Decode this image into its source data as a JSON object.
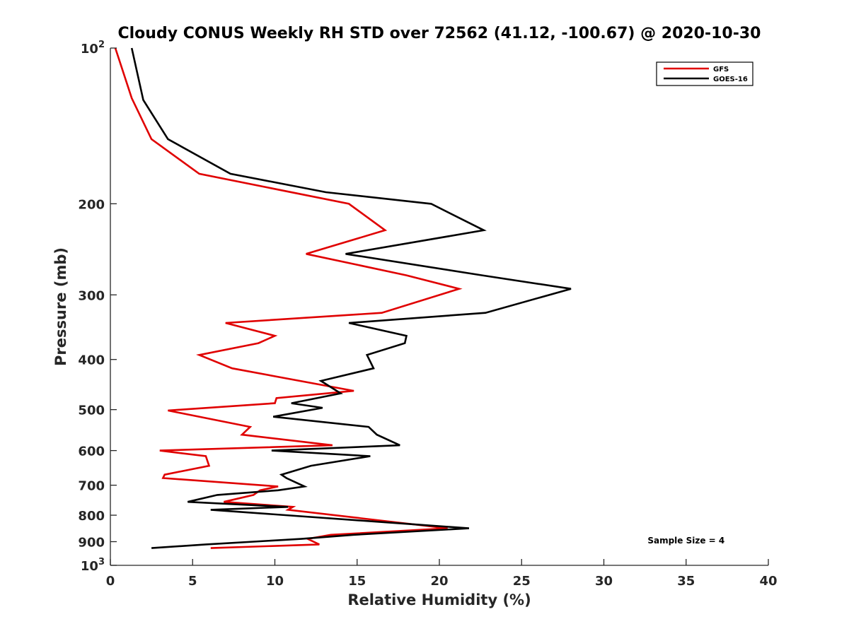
{
  "chart_data": {
    "type": "line",
    "title": "Cloudy CONUS Weekly RH STD over 72562 (41.12, -100.67) @ 2020-10-30",
    "xlabel": "Relative Humidity (%)",
    "ylabel": "Pressure (mb)",
    "xlim": [
      0,
      40
    ],
    "ylim": [
      100,
      1000
    ],
    "y_scale": "log",
    "y_reversed": true,
    "x_ticks": [
      "0",
      "5",
      "10",
      "15",
      "20",
      "25",
      "30",
      "35",
      "40"
    ],
    "y_ticks": [
      {
        "value": 100,
        "base": "10",
        "exp": "2"
      },
      {
        "value": 200,
        "label": "200"
      },
      {
        "value": 300,
        "label": "300"
      },
      {
        "value": 400,
        "label": "400"
      },
      {
        "value": 500,
        "label": "500"
      },
      {
        "value": 600,
        "label": "600"
      },
      {
        "value": 700,
        "label": "700"
      },
      {
        "value": 800,
        "label": "800"
      },
      {
        "value": 900,
        "label": "900"
      },
      {
        "value": 1000,
        "base": "10",
        "exp": "3"
      }
    ],
    "grid": false,
    "legend_position": "top-right",
    "series": [
      {
        "name": "GFS",
        "color": "#e00000",
        "points": [
          [
            0.3,
            100
          ],
          [
            1.3,
            125
          ],
          [
            2.5,
            150
          ],
          [
            5.4,
            175
          ],
          [
            14.5,
            200
          ],
          [
            16.7,
            225
          ],
          [
            11.9,
            250
          ],
          [
            18.0,
            275
          ],
          [
            21.2,
            292
          ],
          [
            16.5,
            325
          ],
          [
            7.0,
            340
          ],
          [
            10.0,
            360
          ],
          [
            9.0,
            372
          ],
          [
            5.4,
            392
          ],
          [
            7.4,
            416
          ],
          [
            14.8,
            460
          ],
          [
            10.1,
            475
          ],
          [
            10.0,
            486
          ],
          [
            3.5,
            502
          ],
          [
            8.5,
            540
          ],
          [
            8.0,
            559
          ],
          [
            13.5,
            586
          ],
          [
            3.0,
            600
          ],
          [
            5.8,
            615
          ],
          [
            6.0,
            642
          ],
          [
            3.3,
            668
          ],
          [
            3.2,
            678
          ],
          [
            10.2,
            704
          ],
          [
            9.1,
            716
          ],
          [
            8.7,
            731
          ],
          [
            6.9,
            754
          ],
          [
            11.1,
            771
          ],
          [
            10.8,
            781
          ],
          [
            20.5,
            848
          ],
          [
            13.4,
            873
          ],
          [
            12.0,
            889
          ],
          [
            12.7,
            911
          ],
          [
            6.1,
            926
          ]
        ]
      },
      {
        "name": "GOES-16",
        "color": "#000000",
        "points": [
          [
            1.3,
            100
          ],
          [
            2.0,
            126
          ],
          [
            3.5,
            150
          ],
          [
            7.3,
            175
          ],
          [
            13.1,
            190
          ],
          [
            19.5,
            200
          ],
          [
            22.7,
            225
          ],
          [
            14.3,
            250
          ],
          [
            22.6,
            275
          ],
          [
            28.0,
            292
          ],
          [
            22.8,
            325
          ],
          [
            14.5,
            340
          ],
          [
            18.0,
            360
          ],
          [
            17.9,
            372
          ],
          [
            15.6,
            392
          ],
          [
            16.0,
            416
          ],
          [
            12.8,
            440
          ],
          [
            14.0,
            465
          ],
          [
            11.0,
            486
          ],
          [
            12.9,
            496
          ],
          [
            9.9,
            516
          ],
          [
            15.7,
            540
          ],
          [
            16.2,
            559
          ],
          [
            17.6,
            586
          ],
          [
            9.8,
            600
          ],
          [
            15.8,
            615
          ],
          [
            12.2,
            642
          ],
          [
            10.4,
            668
          ],
          [
            10.7,
            678
          ],
          [
            11.8,
            704
          ],
          [
            10.2,
            716
          ],
          [
            6.5,
            731
          ],
          [
            4.7,
            754
          ],
          [
            10.8,
            771
          ],
          [
            6.1,
            781
          ],
          [
            21.8,
            848
          ],
          [
            14.8,
            873
          ],
          [
            11.6,
            889
          ],
          [
            5.8,
            911
          ],
          [
            2.5,
            926
          ]
        ]
      }
    ],
    "annotations": [
      {
        "text": "Sample Size = 4",
        "x": 35,
        "y": 907
      }
    ]
  }
}
